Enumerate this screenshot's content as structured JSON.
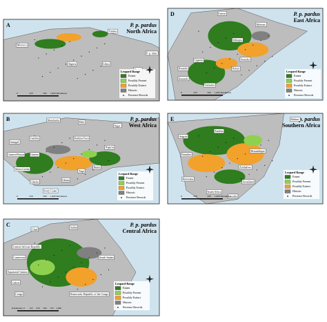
{
  "legend": {
    "title": "Leopard Range",
    "items": [
      {
        "label": "Extant",
        "color": "#2f7d1e"
      },
      {
        "label": "Possibly Present",
        "color": "#8fd14f"
      },
      {
        "label": "Possibly Extinct",
        "color": "#f2a12b"
      },
      {
        "label": "Historic",
        "color": "#808080"
      },
      {
        "label": "Presence Records",
        "color": "#111111"
      }
    ]
  },
  "panels": [
    {
      "letter": "A",
      "subspecies": "P. p. pardus",
      "region": "North Africa",
      "countries": [
        "Morocco",
        "Algeria",
        "Tunisia",
        "Libya",
        "Egypt",
        "P. p. nimr"
      ],
      "scale": [
        "0",
        "250",
        "500",
        "1,000 Kilometers"
      ]
    },
    {
      "letter": "D",
      "subspecies": "P. p. pardus",
      "region": "East Africa",
      "countries": [
        "Eritrea",
        "Djibouti",
        "Ethiopia",
        "Somalia",
        "Uganda",
        "Kenya",
        "Rwanda",
        "Burundi",
        "Tanzania"
      ],
      "scale": [
        "0",
        "250",
        "500",
        "1,000 Kilometers"
      ]
    },
    {
      "letter": "B",
      "subspecies": "P. p. pardus",
      "region": "West Africa",
      "countries": [
        "Mauritania",
        "Mali",
        "Niger",
        "Senegal",
        "Gambia",
        "Guinea-Bissau",
        "Guinea",
        "Sierra Leone",
        "Liberia",
        "Ivory Coast",
        "Burkina Faso",
        "Ghana",
        "Togo",
        "Benin",
        "Nigeria"
      ],
      "scale": [
        "0",
        "250",
        "500",
        "1,000 Kilometers"
      ]
    },
    {
      "letter": "E",
      "subspecies": "P. p. pardus",
      "region": "Southern Africa",
      "countries": [
        "Malawi",
        "Angola",
        "Zambia",
        "Mozambique",
        "Namibia",
        "Zimbabwe",
        "Botswana",
        "Swaziland",
        "South Africa",
        "Lesotho"
      ],
      "scale": [
        "0",
        "250",
        "500",
        "1,000 Kilometers"
      ]
    },
    {
      "letter": "C",
      "subspecies": "P. p. pardus",
      "region": "Central Africa",
      "countries": [
        "Chad",
        "Sudan",
        "Central African Republic",
        "Cameroon",
        "Equatorial Guinea",
        "Gabon",
        "Congo",
        "South Sudan",
        "Democratic Republic of the Congo"
      ],
      "scale": [
        "Kilometers",
        "0",
        "125",
        "250",
        "500",
        "750",
        "1,000"
      ]
    }
  ]
}
